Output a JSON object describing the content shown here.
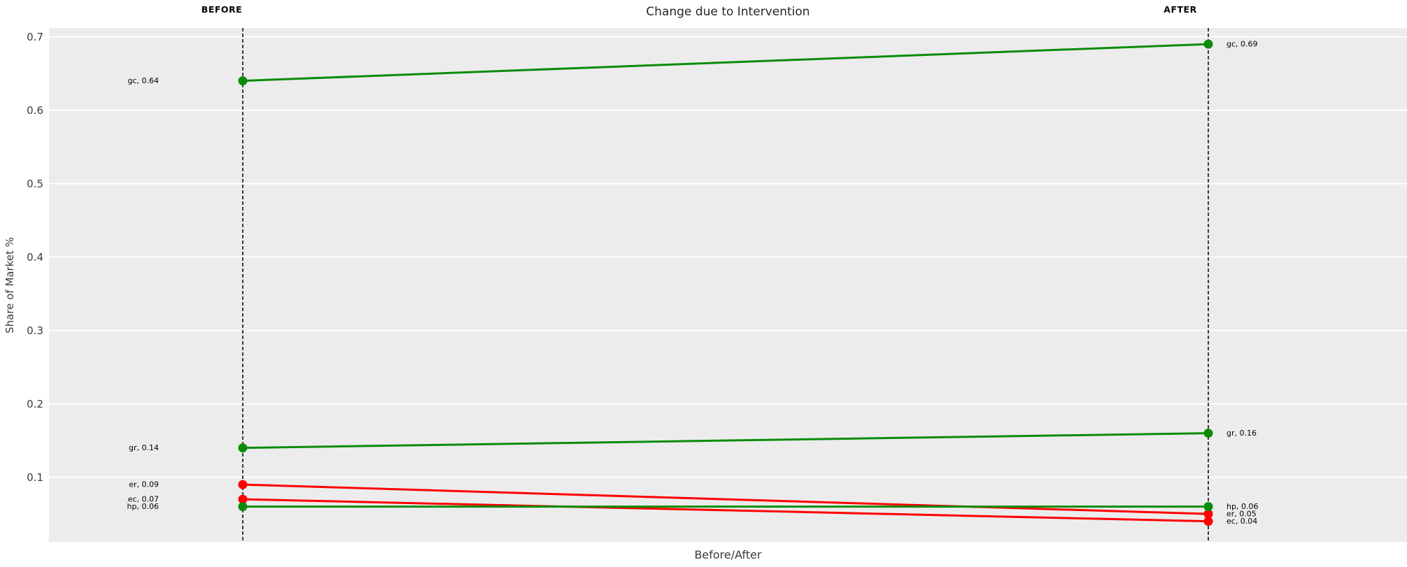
{
  "title": "Change due to Intervention",
  "xlabel": "Before/After",
  "ylabel": "Share of Market %",
  "column_headers": {
    "before": "BEFORE",
    "after": "AFTER"
  },
  "chart_data": {
    "type": "line",
    "subtype": "slope-chart",
    "categories": [
      "BEFORE",
      "AFTER"
    ],
    "series": [
      {
        "name": "gc",
        "values": [
          0.64,
          0.69
        ],
        "color_key": "increase",
        "label_before": "gc, 0.64",
        "label_after": "gc, 0.69"
      },
      {
        "name": "gr",
        "values": [
          0.14,
          0.16
        ],
        "color_key": "increase",
        "label_before": "gr, 0.14",
        "label_after": "gr, 0.16"
      },
      {
        "name": "er",
        "values": [
          0.09,
          0.05
        ],
        "color_key": "decrease",
        "label_before": "er, 0.09",
        "label_after": "er, 0.05"
      },
      {
        "name": "ec",
        "values": [
          0.07,
          0.04
        ],
        "color_key": "decrease",
        "label_before": "ec, 0.07",
        "label_after": "ec, 0.04"
      },
      {
        "name": "hp",
        "values": [
          0.06,
          0.06
        ],
        "color_key": "increase",
        "label_before": "hp, 0.06",
        "label_after": "hp, 0.06"
      }
    ],
    "yticks": [
      0.7,
      0.6,
      0.5,
      0.4,
      0.3,
      0.2,
      0.1
    ],
    "ytick_labels": [
      "0.7",
      "0.6",
      "0.5",
      "0.4",
      "0.3",
      "0.2",
      "0.1"
    ],
    "ylim": [
      0.012,
      0.712
    ],
    "grid": true,
    "legend": false,
    "colors": {
      "increase": "#0a8c0a",
      "decrease": "#ff0000",
      "plot_background": "#ececec",
      "gridline": "#ffffff",
      "guide_line": "#000000",
      "point_label": "#000000"
    }
  }
}
